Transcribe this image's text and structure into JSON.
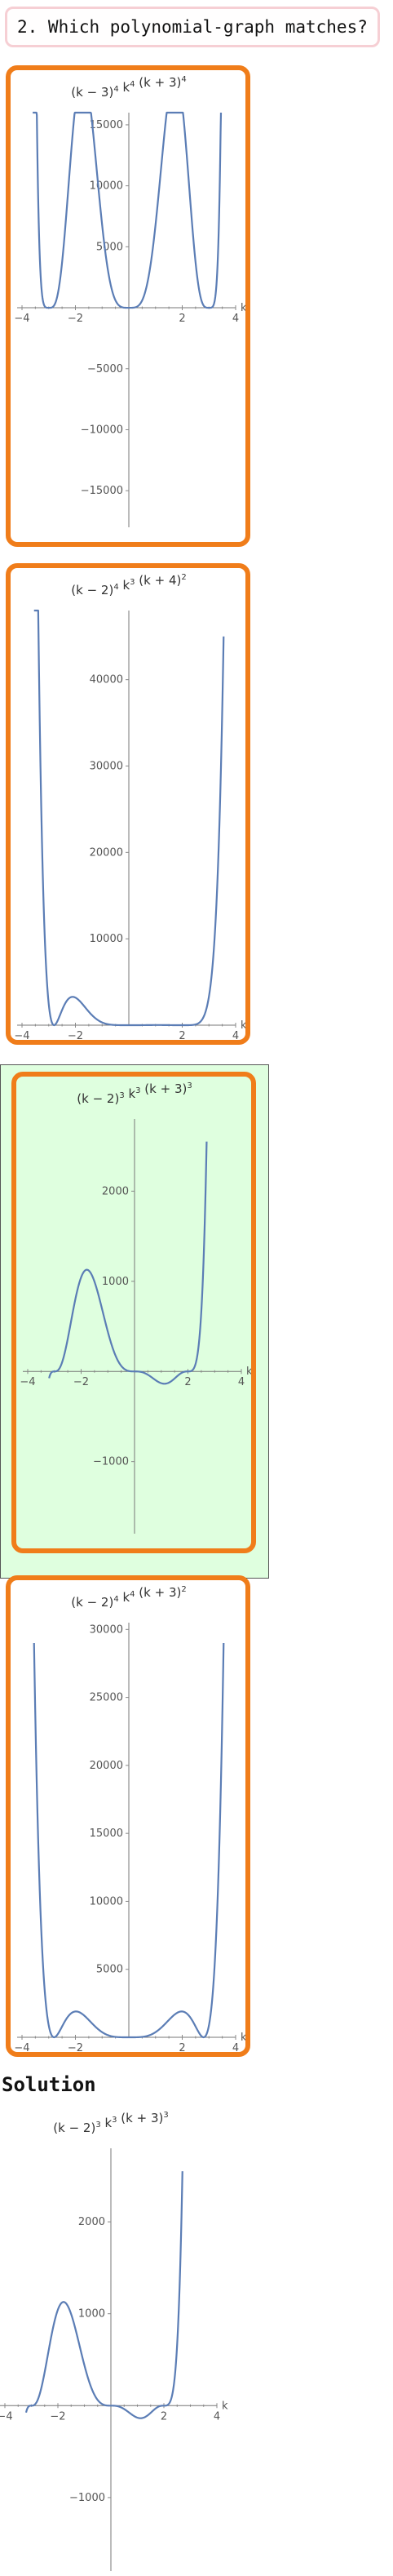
{
  "question": {
    "text": "2. Which polynomial-graph matches?"
  },
  "solution": {
    "label": "Solution"
  },
  "colors": {
    "option_border": "#f07d1a",
    "selected_bg": "#dfffdf",
    "curve": "#5b7db5",
    "question_border": "#f6cfd4"
  },
  "options": [
    {
      "selected": false,
      "title": {
        "a": "(k − 3)",
        "ae": "4",
        "b": " k",
        "be": "4",
        "c": " (k + 3)",
        "ce": "4"
      }
    },
    {
      "selected": false,
      "title": {
        "a": "(k − 2)",
        "ae": "4",
        "b": " k",
        "be": "3",
        "c": " (k + 4)",
        "ce": "2"
      }
    },
    {
      "selected": true,
      "title": {
        "a": "(k − 2)",
        "ae": "3",
        "b": " k",
        "be": "3",
        "c": " (k + 3)",
        "ce": "3"
      }
    },
    {
      "selected": false,
      "title": {
        "a": "(k − 2)",
        "ae": "4",
        "b": " k",
        "be": "4",
        "c": " (k + 3)",
        "ce": "2"
      }
    }
  ],
  "solution_plot": {
    "title": {
      "a": "(k − 2)",
      "ae": "3",
      "b": " k",
      "be": "3",
      "c": " (k + 3)",
      "ce": "3"
    }
  },
  "chart_data": [
    {
      "type": "line",
      "title": "(k − 3)^4 k^4 (k + 3)^4",
      "xlabel": "k",
      "ylabel": "",
      "xlim": [
        -4,
        4
      ],
      "ylim": [
        -18000,
        16000
      ],
      "x_ticks": [
        -4,
        -2,
        2,
        4
      ],
      "y_ticks": [
        -15000,
        -10000,
        -5000,
        5000,
        10000,
        15000
      ],
      "y_tick_labels": [
        "−15000",
        "−10000",
        "−5000",
        "5000",
        "10000",
        "15000"
      ],
      "function": {
        "roots": [
          3,
          0,
          -3
        ],
        "powers": [
          4,
          4,
          4
        ],
        "k_min": -3.6,
        "k_max": 3.45,
        "scale": -1,
        "peak": 16700
      }
    },
    {
      "type": "line",
      "title": "(k − 2)^4 k^3 (k + 4)^2",
      "xlabel": "k",
      "ylabel": "",
      "xlim": [
        -4,
        4
      ],
      "ylim": [
        0,
        48000
      ],
      "x_ticks": [
        -4,
        -2,
        2,
        4
      ],
      "y_ticks": [
        10000,
        20000,
        30000,
        40000
      ],
      "y_tick_labels": [
        "10000",
        "20000",
        "30000",
        "40000"
      ],
      "function": {
        "roots": [
          2,
          0,
          -2.8
        ],
        "powers": [
          4,
          4,
          2
        ],
        "k_min": -3.55,
        "k_max": 3.55,
        "scale": 1,
        "peak": 45000
      }
    },
    {
      "type": "line",
      "title": "(k − 2)^3 k^3 (k + 3)^3",
      "xlabel": "k",
      "ylabel": "",
      "xlim": [
        -4,
        4
      ],
      "ylim": [
        -1800,
        2800
      ],
      "x_ticks": [
        -4,
        -2,
        2,
        4
      ],
      "y_ticks": [
        -1000,
        1000,
        2000
      ],
      "y_tick_labels": [
        "−1000",
        "1000",
        "2000"
      ],
      "function": {
        "roots": [
          2,
          0,
          -3
        ],
        "powers": [
          3,
          3,
          3
        ],
        "k_min": -3.2,
        "k_max": 2.7,
        "scale": -1,
        "peak": 2550
      }
    },
    {
      "type": "line",
      "title": "(k − 2)^4 k^4 (k + 3)^2",
      "xlabel": "k",
      "ylabel": "",
      "xlim": [
        -4,
        4
      ],
      "ylim": [
        0,
        30500
      ],
      "x_ticks": [
        -4,
        -2,
        2,
        4
      ],
      "y_ticks": [
        5000,
        10000,
        15000,
        20000,
        25000,
        30000
      ],
      "y_tick_labels": [
        "5000",
        "10000",
        "15000",
        "20000",
        "25000",
        "30000"
      ],
      "function": {
        "roots": [
          2.8,
          0,
          -2.8
        ],
        "powers": [
          2,
          4,
          2
        ],
        "k_min": -3.55,
        "k_max": 3.55,
        "scale": 1,
        "peak": 29000
      }
    },
    {
      "type": "line",
      "title": "(k − 2)^3 k^3 (k + 3)^3",
      "xlabel": "k",
      "ylabel": "",
      "xlim": [
        -4,
        4
      ],
      "ylim": [
        -1800,
        2800
      ],
      "x_ticks": [
        -4,
        -2,
        2,
        4
      ],
      "y_ticks": [
        -1000,
        1000,
        2000
      ],
      "y_tick_labels": [
        "−1000",
        "1000",
        "2000"
      ],
      "function": {
        "roots": [
          2,
          0,
          -3
        ],
        "powers": [
          3,
          3,
          3
        ],
        "k_min": -3.2,
        "k_max": 2.7,
        "scale": -1,
        "peak": 2550
      }
    }
  ]
}
